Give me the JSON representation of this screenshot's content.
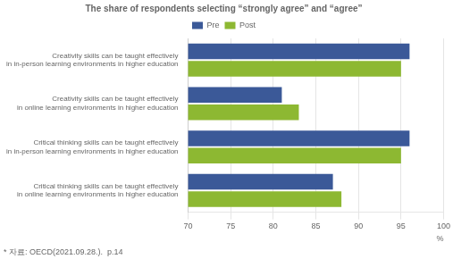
{
  "chart_data": {
    "type": "bar",
    "orientation": "horizontal",
    "title": "The share of respondents selecting “strongly agree” and “agree”",
    "xlabel": "%",
    "annotations": [
      "* 자료: OECD(2021.09.28.).  p.14"
    ],
    "categories": [
      "Creativity skills can be taught effectively\nin in-person learning environments in higher education",
      "Creativity skills can be taught effectively\nin online learning environments in higher education",
      "Critical thinking skills can be taught effectively\nin in-person learning environments in higher education",
      "Critical thinking skills can be taught effectively\nin online learning environments in higher education"
    ],
    "series": [
      {
        "name": "Pre",
        "color": "#3B5998",
        "values": [
          96,
          81,
          96,
          87
        ]
      },
      {
        "name": "Post",
        "color": "#8DB832",
        "values": [
          95,
          83,
          95,
          88
        ]
      }
    ],
    "xlim": [
      70,
      100
    ],
    "xticks": [
      70,
      75,
      80,
      85,
      90,
      95,
      100
    ],
    "grid": true,
    "legend": "top"
  }
}
